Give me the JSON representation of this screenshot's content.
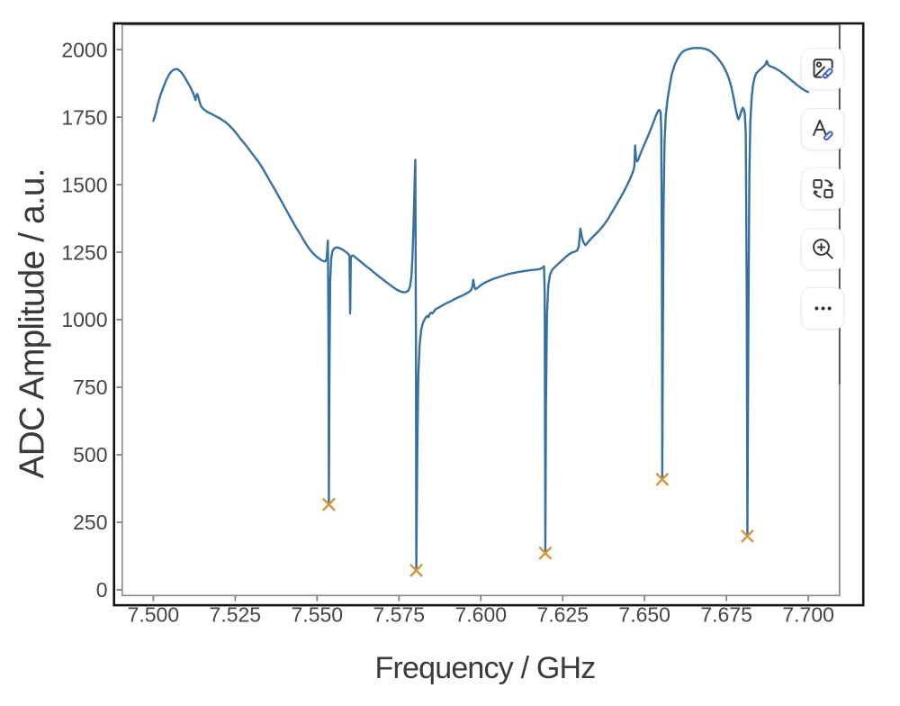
{
  "chart_data": {
    "type": "line",
    "xlabel": "Frequency / GHz",
    "ylabel": "ADC Amplitude / a.u.",
    "xlim": [
      7.4905,
      7.7095
    ],
    "ylim": [
      -21,
      2092
    ],
    "grid": false,
    "legend": "none",
    "x_ticks": [
      7.5,
      7.525,
      7.55,
      7.575,
      7.6,
      7.625,
      7.65,
      7.675,
      7.7
    ],
    "x_tick_labels": [
      "7.500",
      "7.525",
      "7.550",
      "7.575",
      "7.600",
      "7.625",
      "7.650",
      "7.675",
      "7.700"
    ],
    "y_ticks": [
      0,
      250,
      500,
      750,
      1000,
      1250,
      1500,
      1750,
      2000
    ],
    "y_tick_labels": [
      "0",
      "250",
      "500",
      "750",
      "1000",
      "1250",
      "1500",
      "1750",
      "2000"
    ],
    "series": [
      {
        "name": "adc-amplitude-trace",
        "color": "#36719f",
        "x": [
          7.5,
          7.5007,
          7.5014,
          7.5022,
          7.5031,
          7.504,
          7.5048,
          7.5057,
          7.5065,
          7.5073,
          7.508,
          7.5087,
          7.5096,
          7.5104,
          7.5113,
          7.5121,
          7.5126,
          7.5129,
          7.5131,
          7.5134,
          7.5138,
          7.5142,
          7.5147,
          7.5154,
          7.5165,
          7.5177,
          7.5188,
          7.5199,
          7.521,
          7.5221,
          7.5232,
          7.5244,
          7.5255,
          7.5266,
          7.5278,
          7.5289,
          7.53,
          7.5311,
          7.5323,
          7.5334,
          7.5345,
          7.5356,
          7.5368,
          7.5379,
          7.539,
          7.5401,
          7.5412,
          7.5423,
          7.5434,
          7.5446,
          7.5457,
          7.5468,
          7.5479,
          7.549,
          7.5501,
          7.5511,
          7.5519,
          7.5525,
          7.5529,
          7.5531,
          7.5533,
          7.5535,
          7.5536,
          7.5538,
          7.554,
          7.5543,
          7.5547,
          7.5552,
          7.5559,
          7.5566,
          7.5574,
          7.5581,
          7.5589,
          7.5595,
          7.5599,
          7.5601,
          7.5603,
          7.5607,
          7.561,
          7.5617,
          7.5626,
          7.5636,
          7.5648,
          7.5661,
          7.5674,
          7.5688,
          7.5702,
          7.5715,
          7.5728,
          7.5741,
          7.5752,
          7.5762,
          7.5771,
          7.5779,
          7.5784,
          7.5788,
          7.5791,
          7.5794,
          7.5797,
          7.5799,
          7.58,
          7.5802,
          7.5803,
          7.5806,
          7.5809,
          7.5813,
          7.5818,
          7.5823,
          7.5828,
          7.5833,
          7.5837,
          7.584,
          7.5844,
          7.5848,
          7.5852,
          7.5857,
          7.5862,
          7.587,
          7.588,
          7.589,
          7.59,
          7.5911,
          7.5921,
          7.5931,
          7.5941,
          7.5951,
          7.596,
          7.5967,
          7.5971,
          7.5975,
          7.5977,
          7.598,
          7.5983,
          7.5989,
          7.5998,
          7.601,
          7.6024,
          7.6038,
          7.6052,
          7.6065,
          7.6078,
          7.6091,
          7.6104,
          7.6117,
          7.6131,
          7.6144,
          7.6157,
          7.617,
          7.6181,
          7.6189,
          7.6193,
          7.6195,
          7.6197,
          7.6199,
          7.6202,
          7.6206,
          7.6211,
          7.6218,
          7.6226,
          7.6233,
          7.6241,
          7.625,
          7.626,
          7.627,
          7.6279,
          7.6287,
          7.6294,
          7.6299,
          7.6302,
          7.6304,
          7.6307,
          7.6311,
          7.6315,
          7.632,
          7.6328,
          7.6338,
          7.6348,
          7.6358,
          7.6368,
          7.6378,
          7.6388,
          7.6397,
          7.6407,
          7.6417,
          7.6427,
          7.6437,
          7.6447,
          7.6456,
          7.6462,
          7.6467,
          7.6469,
          7.6471,
          7.6474,
          7.6477,
          7.6481,
          7.6486,
          7.6492,
          7.6499,
          7.6507,
          7.6514,
          7.6521,
          7.6528,
          7.6535,
          7.6541,
          7.6545,
          7.6549,
          7.6551,
          7.6553,
          7.6554,
          7.6556,
          7.6558,
          7.6561,
          7.6565,
          7.657,
          7.6577,
          7.6583,
          7.6591,
          7.6598,
          7.6606,
          7.6613,
          7.6621,
          7.6631,
          7.6641,
          7.6651,
          7.6662,
          7.6673,
          7.6684,
          7.6694,
          7.6702,
          7.671,
          7.6717,
          7.6724,
          7.6731,
          7.6738,
          7.6745,
          7.6752,
          7.6758,
          7.6765,
          7.6772,
          7.6779,
          7.6784,
          7.6787,
          7.6791,
          7.6796,
          7.68,
          7.6803,
          7.6806,
          7.6809,
          7.6812,
          7.6814,
          7.6817,
          7.682,
          7.6823,
          7.6827,
          7.6831,
          7.6836,
          7.6841,
          7.6848,
          7.6855,
          7.6862,
          7.6868,
          7.6871,
          7.6873,
          7.6877,
          7.6882,
          7.6889,
          7.6897,
          7.6906,
          7.6915,
          7.6924,
          7.6933,
          7.6942,
          7.6951,
          7.6961,
          7.697,
          7.6979,
          7.6989,
          7.6999
        ],
        "y": [
          1736,
          1763,
          1800,
          1833,
          1862,
          1889,
          1908,
          1921,
          1927,
          1928,
          1922,
          1914,
          1897,
          1880,
          1861,
          1841,
          1824,
          1813,
          1828,
          1836,
          1823,
          1803,
          1788,
          1779,
          1769,
          1762,
          1755,
          1748,
          1740,
          1731,
          1719,
          1704,
          1688,
          1670,
          1653,
          1636,
          1618,
          1600,
          1581,
          1560,
          1537,
          1513,
          1489,
          1465,
          1441,
          1417,
          1393,
          1369,
          1345,
          1322,
          1299,
          1277,
          1258,
          1243,
          1231,
          1222,
          1217,
          1216,
          1224,
          1255,
          1293,
          900,
          316,
          850,
          1140,
          1225,
          1254,
          1264,
          1268,
          1266,
          1262,
          1257,
          1250,
          1244,
          1237,
          1023,
          1233,
          1237,
          1238,
          1231,
          1222,
          1212,
          1200,
          1188,
          1175,
          1161,
          1148,
          1136,
          1124,
          1113,
          1106,
          1102,
          1102,
          1108,
          1124,
          1158,
          1225,
          1330,
          1465,
          1560,
          1592,
          900,
          72,
          520,
          790,
          905,
          962,
          988,
          1000,
          1010,
          1014,
          1010,
          1021,
          1026,
          1023,
          1031,
          1039,
          1044,
          1051,
          1058,
          1064,
          1070,
          1077,
          1083,
          1088,
          1094,
          1100,
          1106,
          1111,
          1127,
          1148,
          1124,
          1113,
          1117,
          1126,
          1136,
          1144,
          1151,
          1157,
          1162,
          1167,
          1171,
          1174,
          1177,
          1180,
          1182,
          1184,
          1186,
          1188,
          1193,
          1198,
          1100,
          136,
          700,
          1020,
          1125,
          1166,
          1185,
          1195,
          1203,
          1212,
          1222,
          1233,
          1243,
          1249,
          1252,
          1256,
          1270,
          1310,
          1337,
          1316,
          1295,
          1283,
          1276,
          1288,
          1302,
          1314,
          1326,
          1339,
          1355,
          1372,
          1391,
          1411,
          1432,
          1453,
          1475,
          1499,
          1522,
          1540,
          1557,
          1570,
          1645,
          1598,
          1586,
          1593,
          1610,
          1628,
          1648,
          1670,
          1691,
          1712,
          1734,
          1757,
          1772,
          1777,
          1768,
          1700,
          1150,
          409,
          950,
          1420,
          1660,
          1760,
          1815,
          1868,
          1908,
          1940,
          1960,
          1977,
          1988,
          1996,
          2001,
          2004,
          2006,
          2006,
          2006,
          2003,
          1999,
          1993,
          1985,
          1977,
          1967,
          1956,
          1944,
          1929,
          1911,
          1891,
          1862,
          1821,
          1776,
          1749,
          1742,
          1754,
          1774,
          1785,
          1778,
          1763,
          1690,
          1080,
          199,
          980,
          1540,
          1733,
          1822,
          1868,
          1896,
          1912,
          1921,
          1929,
          1936,
          1943,
          1951,
          1958,
          1945,
          1939,
          1936,
          1932,
          1926,
          1919,
          1911,
          1902,
          1893,
          1884,
          1874,
          1865,
          1857,
          1849,
          1843
        ]
      }
    ],
    "markers": {
      "name": "resonance-minima",
      "symbol": "x",
      "color": "#d09a3e",
      "points": [
        [
          7.5536,
          316
        ],
        [
          7.5803,
          72
        ],
        [
          7.6197,
          136
        ],
        [
          7.6554,
          409
        ],
        [
          7.6814,
          199
        ]
      ]
    }
  },
  "toolbar": {
    "buttons": [
      {
        "id": "edit-image",
        "icon": "image-edit-icon"
      },
      {
        "id": "edit-text",
        "icon": "text-edit-icon"
      },
      {
        "id": "swap-visual",
        "icon": "swap-icon"
      },
      {
        "id": "zoom-in",
        "icon": "zoom-in-icon"
      },
      {
        "id": "more-options",
        "icon": "ellipsis-icon"
      }
    ]
  },
  "colors": {
    "background": "#ffffff",
    "plot_border": "#141414",
    "axes_frame": "#898989",
    "tick": "#828282",
    "tick_label": "#454545",
    "axis_label": "#3a3a3a",
    "line": "#36719f",
    "marker": "#d09a3e",
    "icon": "#383838",
    "icon_accent": "#3c5fd7"
  }
}
